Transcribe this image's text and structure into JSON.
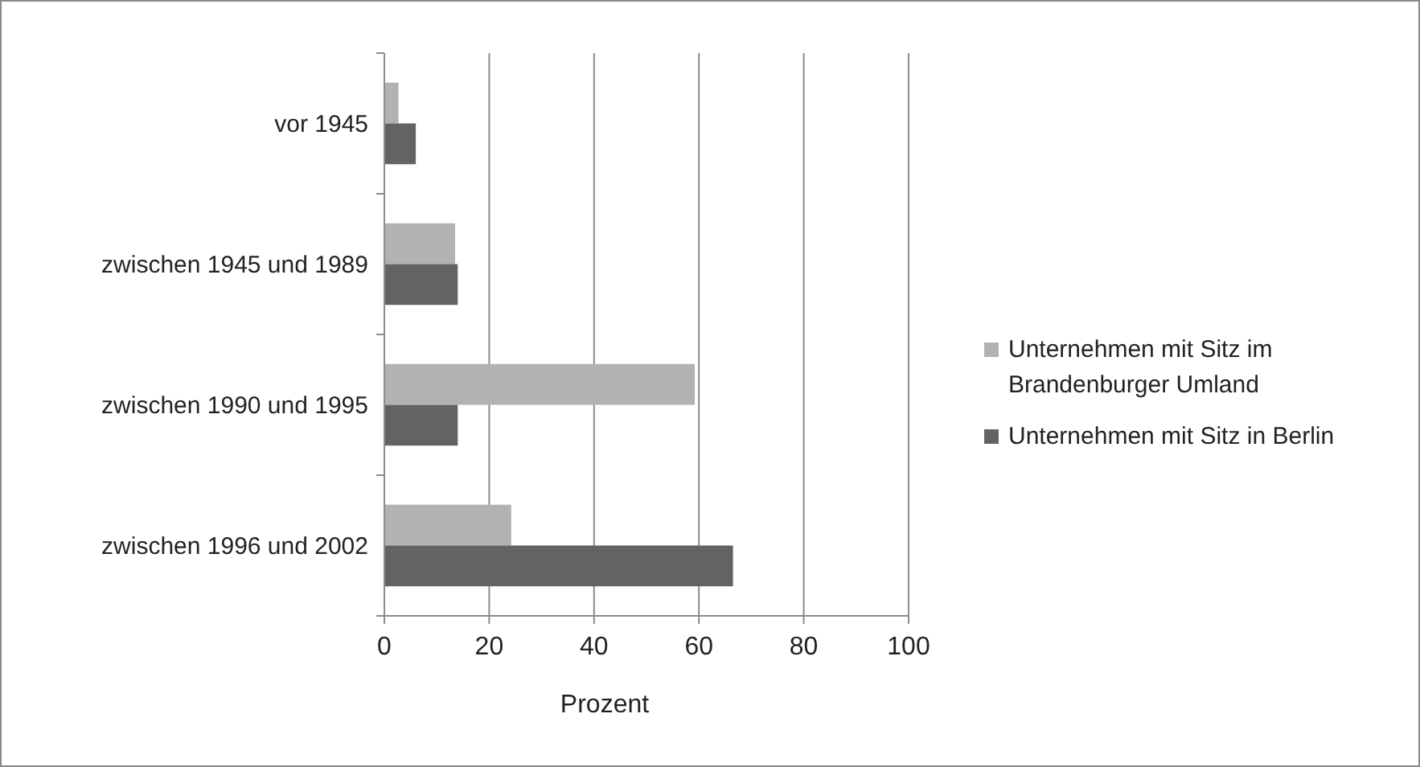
{
  "chart_data": {
    "type": "bar",
    "orientation": "horizontal",
    "xlabel": "Prozent",
    "categories": [
      "vor 1945",
      "zwischen 1945 und 1989",
      "zwischen 1990 und 1995",
      "zwischen 1996 und 2002"
    ],
    "series": [
      {
        "name": "Unternehmen mit Sitz im Brandenburger Umland",
        "color": "#b2b2b2",
        "values": [
          2.7,
          13.5,
          59.2,
          24.2
        ]
      },
      {
        "name": "Unternehmen mit Sitz in Berlin",
        "color": "#636363",
        "values": [
          6,
          14,
          14,
          66.5
        ]
      }
    ],
    "xlim": [
      0,
      100
    ],
    "xticks": [
      0,
      20,
      40,
      60,
      80,
      100
    ],
    "grid": "x",
    "legend": "right"
  }
}
